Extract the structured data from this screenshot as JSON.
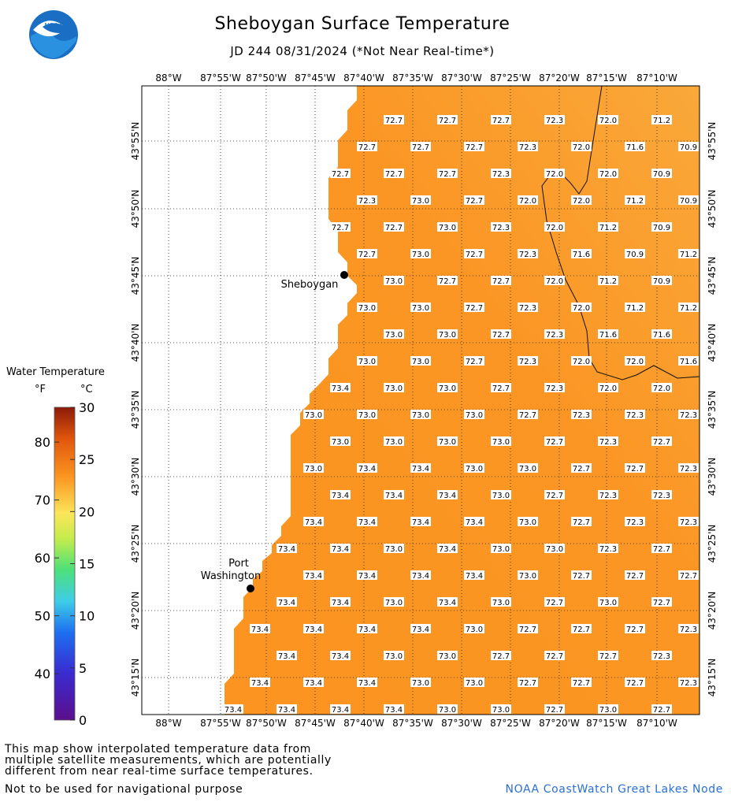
{
  "header": {
    "title": "Sheboygan Surface Temperature",
    "subtitle": "JD 244 08/31/2024 (*Not Near Real-time*)",
    "logo_text": "NOAA"
  },
  "map": {
    "lon_labels": [
      "88°W",
      "87°55'W",
      "87°50'W",
      "87°45'W",
      "87°40'W",
      "87°35'W",
      "87°30'W",
      "87°25'W",
      "87°20'W",
      "87°15'W",
      "87°10'W"
    ],
    "lat_labels": [
      "43°55'N",
      "43°50'N",
      "43°45'N",
      "43°40'N",
      "43°35'N",
      "43°30'N",
      "43°25'N",
      "43°20'N",
      "43°15'N"
    ],
    "places": [
      {
        "name": "Sheboygan",
        "lines": [
          "Sheboygan"
        ]
      },
      {
        "name": "Port Washington",
        "lines": [
          "Port",
          "Washington"
        ]
      }
    ],
    "temperature_rows": [
      [
        "72.7",
        "72.7",
        "72.7",
        "72.3",
        "72.0",
        "71.2"
      ],
      [
        "72.7",
        "72.7",
        "72.7",
        "72.3",
        "72.0",
        "71.6",
        "70.9"
      ],
      [
        "72.7",
        "72.7",
        "72.7",
        "72.3",
        "72.0",
        "72.0",
        "70.9"
      ],
      [
        "72.3",
        "73.0",
        "72.7",
        "72.0",
        "72.0",
        "71.2",
        "70.9"
      ],
      [
        "72.7",
        "72.7",
        "73.0",
        "72.3",
        "72.0",
        "71.2",
        "70.9"
      ],
      [
        "72.7",
        "73.0",
        "72.7",
        "72.3",
        "71.6",
        "70.9",
        "71.2"
      ],
      [
        "73.0",
        "72.7",
        "72.7",
        "72.0",
        "71.2",
        "70.9"
      ],
      [
        "73.0",
        "73.0",
        "72.7",
        "72.3",
        "72.0",
        "71.2",
        "71.2"
      ],
      [
        "73.0",
        "73.0",
        "72.7",
        "72.3",
        "71.6",
        "71.6"
      ],
      [
        "73.0",
        "73.0",
        "72.7",
        "72.3",
        "72.0",
        "72.0",
        "71.6"
      ],
      [
        "73.4",
        "73.0",
        "73.0",
        "72.7",
        "72.3",
        "72.0",
        "72.0"
      ],
      [
        "73.0",
        "73.0",
        "73.0",
        "73.0",
        "72.7",
        "72.3",
        "72.3",
        "72.3"
      ],
      [
        "73.0",
        "73.0",
        "73.0",
        "73.0",
        "72.7",
        "72.3",
        "72.7"
      ],
      [
        "73.0",
        "73.4",
        "73.4",
        "73.0",
        "73.0",
        "72.7",
        "72.7",
        "72.3"
      ],
      [
        "73.4",
        "73.4",
        "73.4",
        "73.0",
        "72.7",
        "72.3",
        "72.3"
      ],
      [
        "73.4",
        "73.4",
        "73.4",
        "73.4",
        "73.0",
        "72.7",
        "72.3",
        "72.3"
      ],
      [
        "73.4",
        "73.4",
        "73.0",
        "73.4",
        "73.0",
        "73.0",
        "72.3",
        "72.7"
      ],
      [
        "73.4",
        "73.4",
        "73.4",
        "73.4",
        "73.0",
        "72.7",
        "72.7",
        "72.7"
      ],
      [
        "73.4",
        "73.4",
        "73.0",
        "73.4",
        "73.0",
        "72.7",
        "73.0",
        "72.7"
      ],
      [
        "73.4",
        "73.4",
        "73.4",
        "73.4",
        "73.0",
        "72.7",
        "72.7",
        "72.7",
        "72.3"
      ],
      [
        "73.4",
        "73.4",
        "73.0",
        "73.0",
        "72.7",
        "72.7",
        "72.7",
        "72.3"
      ],
      [
        "73.4",
        "73.4",
        "73.4",
        "73.0",
        "73.0",
        "72.7",
        "72.7",
        "72.7",
        "72.3"
      ],
      [
        "73.4",
        "73.4",
        "73.4",
        "73.4",
        "73.0",
        "73.0",
        "72.7",
        "73.0",
        "72.7"
      ]
    ]
  },
  "legend": {
    "title": "Water Temperature",
    "unit_f": "°F",
    "unit_c": "°C",
    "f_ticks": [
      "40",
      "50",
      "60",
      "70",
      "80"
    ],
    "c_ticks": [
      "0",
      "5",
      "10",
      "15",
      "20",
      "25",
      "30"
    ]
  },
  "colors": {
    "water": "#fb9420",
    "water_ne": "#f9a83a",
    "land": "#ffffff",
    "credit": "#2a6fd6"
  },
  "footer": {
    "note": "This map show interpolated temperature data from multiple satellite measurements, which are potentially different from near real-time surface temperatures.",
    "note_lines": [
      "This map show interpolated temperature data from",
      "multiple satellite measurements, which are potentially",
      "different from near real-time surface temperatures."
    ],
    "navigation_note": "Not to be used for navigational purpose",
    "credit": "NOAA CoastWatch Great Lakes Node"
  }
}
